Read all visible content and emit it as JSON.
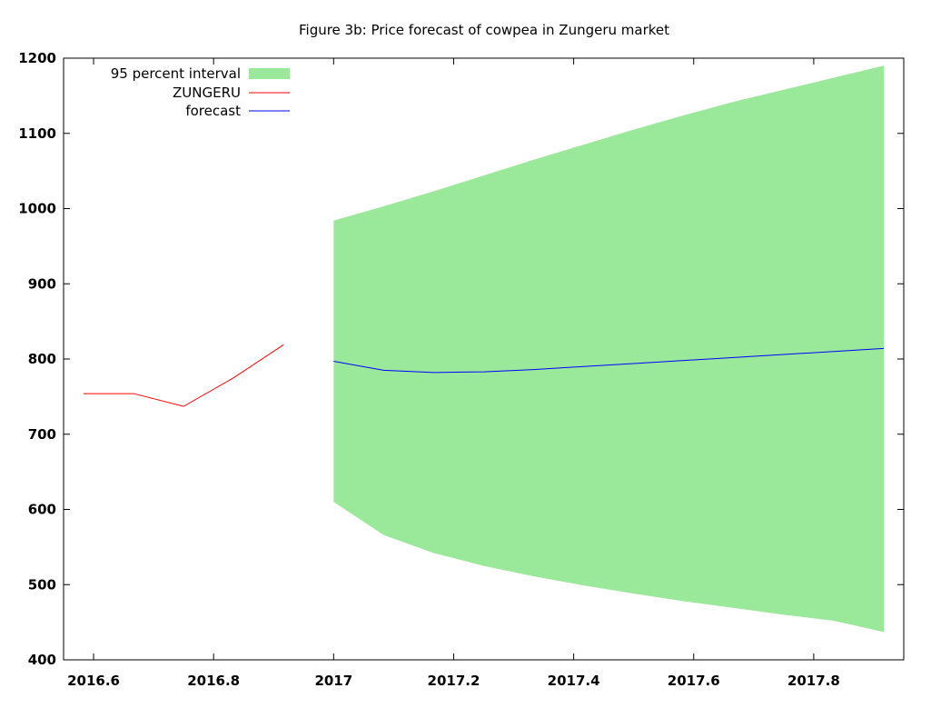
{
  "chart_data": {
    "type": "line",
    "title": "Figure 3b: Price forecast of cowpea in Zungeru market",
    "xlabel": "",
    "ylabel": "",
    "xlim": [
      2016.55,
      2017.95
    ],
    "ylim": [
      400,
      1200
    ],
    "x_ticks": [
      2016.6,
      2016.8,
      2017,
      2017.2,
      2017.4,
      2017.6,
      2017.8
    ],
    "x_tick_labels": [
      "2016.6",
      "2016.8",
      "2017",
      "2017.2",
      "2017.4",
      "2017.6",
      "2017.8"
    ],
    "y_ticks": [
      400,
      500,
      600,
      700,
      800,
      900,
      1000,
      1100,
      1200
    ],
    "y_tick_labels": [
      "400",
      "500",
      "600",
      "700",
      "800",
      "900",
      "1000",
      "1100",
      "1200"
    ],
    "grid": false,
    "legend_position": "top-left",
    "legend": [
      {
        "label": "95 percent interval",
        "kind": "band",
        "color": "#9ae899"
      },
      {
        "label": "ZUNGERU",
        "kind": "line",
        "color": "#ff0000"
      },
      {
        "label": "forecast",
        "kind": "line",
        "color": "#0000ff"
      }
    ],
    "band": {
      "name": "95 percent interval",
      "color": "#9ae899",
      "x": [
        2017.0,
        2017.0833,
        2017.1667,
        2017.25,
        2017.3333,
        2017.4167,
        2017.5,
        2017.5833,
        2017.6667,
        2017.75,
        2017.8333,
        2017.9167
      ],
      "lower": [
        610,
        566,
        542,
        525,
        511,
        499,
        488,
        478,
        469,
        460,
        452,
        437
      ],
      "upper": [
        984,
        1003,
        1023,
        1044,
        1065,
        1085,
        1105,
        1124,
        1142,
        1158,
        1174,
        1190
      ]
    },
    "series": [
      {
        "name": "ZUNGERU",
        "color": "#ff0000",
        "x": [
          2016.5833,
          2016.6667,
          2016.75,
          2016.8333,
          2016.9167
        ],
        "values": [
          754,
          754,
          737,
          775,
          819
        ]
      },
      {
        "name": "forecast",
        "color": "#0000ff",
        "x": [
          2017.0,
          2017.0833,
          2017.1667,
          2017.25,
          2017.3333,
          2017.4167,
          2017.5,
          2017.5833,
          2017.6667,
          2017.75,
          2017.8333,
          2017.9167
        ],
        "values": [
          797,
          785,
          782,
          783,
          786,
          790,
          794,
          798,
          802,
          806,
          810,
          814
        ]
      }
    ]
  }
}
